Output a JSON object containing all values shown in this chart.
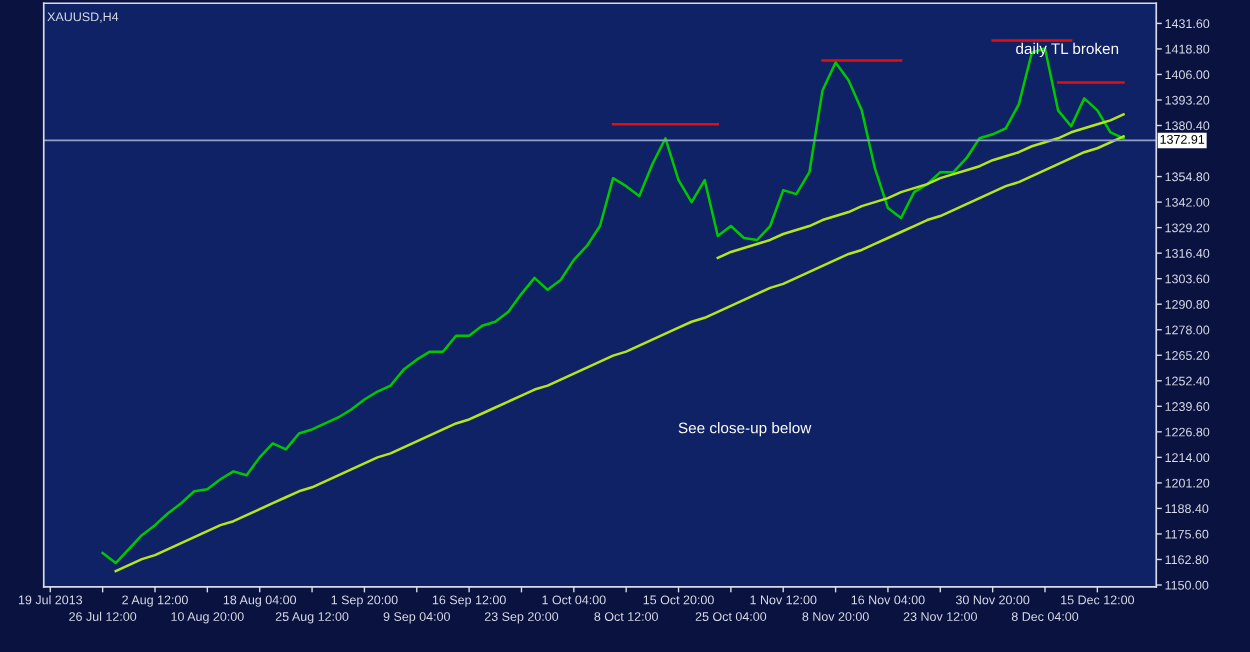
{
  "chart_data": {
    "type": "line",
    "title": "XAUUSD,H4",
    "categories": [
      "19 Jul 2013",
      null,
      null,
      null,
      "26 Jul 12:00",
      null,
      null,
      null,
      "2 Aug 12:00",
      null,
      null,
      null,
      "10 Aug 20:00",
      null,
      null,
      null,
      "18 Aug 04:00",
      null,
      null,
      null,
      "25 Aug 12:00",
      null,
      null,
      null,
      "1 Sep 20:00",
      null,
      null,
      null,
      "9 Sep 04:00",
      null,
      null,
      null,
      "16 Sep 12:00",
      null,
      null,
      null,
      "23 Sep 20:00",
      null,
      null,
      null,
      "1 Oct 04:00",
      null,
      null,
      null,
      "8 Oct 12:00",
      null,
      null,
      null,
      "15 Oct 20:00",
      null,
      null,
      null,
      "25 Oct 04:00",
      null,
      null,
      null,
      "1 Nov 12:00",
      null,
      null,
      null,
      "8 Nov 20:00",
      null,
      null,
      null,
      "16 Nov 04:00",
      null,
      null,
      null,
      "23 Nov 12:00",
      null,
      null,
      null,
      "30 Nov 20:00",
      null,
      null,
      null,
      "8 Dec 04:00",
      null,
      null,
      null,
      "15 Dec 12:00",
      null,
      null
    ],
    "series": [
      {
        "color": "#00c800",
        "values": [
          null,
          null,
          null,
          null,
          1166,
          1161,
          1168,
          1175,
          1180,
          1186,
          1191,
          1197,
          1198,
          1203,
          1207,
          1205,
          1214,
          1221,
          1218,
          1226,
          1228,
          1231,
          1234,
          1238,
          1243,
          1247,
          1250,
          1258,
          1263,
          1267,
          1267,
          1275,
          1275,
          1280,
          1282,
          1287,
          1296,
          1304,
          1298,
          1303,
          1313,
          1320,
          1330,
          1354,
          1350,
          1345,
          1361,
          1374,
          1353,
          1342,
          1353,
          1325,
          1330,
          1324,
          1323,
          1330,
          1348,
          1346,
          1357,
          1398,
          1412,
          1403,
          1388,
          1359,
          1339,
          1334,
          1347,
          1351,
          1357,
          1357,
          1364,
          1374,
          1376,
          1379,
          1391,
          1417,
          1419,
          1388,
          1380,
          1394,
          1388,
          1377,
          1374
        ]
      },
      {
        "color": "#b4e61e",
        "values": [
          null,
          null,
          null,
          null,
          null,
          1157,
          1160,
          1163,
          1165,
          1168,
          1171,
          1174,
          1177,
          1180,
          1182,
          1185,
          1188,
          1191,
          1194,
          1197,
          1199,
          1202,
          1205,
          1208,
          1211,
          1214,
          1216,
          1219,
          1222,
          1225,
          1228,
          1231,
          1233,
          1236,
          1239,
          1242,
          1245,
          1248,
          1250,
          1253,
          1256,
          1259,
          1262,
          1265,
          1267,
          1270,
          1273,
          1276,
          1279,
          1282,
          1284,
          1287,
          1290,
          1293,
          1296,
          1299,
          1301,
          1304,
          1307,
          1310,
          1313,
          1316,
          1318,
          1321,
          1324,
          1327,
          1330,
          1333,
          1335,
          1338,
          1341,
          1344,
          1347,
          1350,
          1352,
          1355,
          1358,
          1361,
          1364,
          1367,
          1369,
          1372,
          1375
        ]
      },
      {
        "color": "#b4e61e",
        "values": [
          null,
          null,
          null,
          null,
          null,
          null,
          null,
          null,
          null,
          null,
          null,
          null,
          null,
          null,
          null,
          null,
          null,
          null,
          null,
          null,
          null,
          null,
          null,
          null,
          null,
          null,
          null,
          null,
          null,
          null,
          null,
          null,
          null,
          null,
          null,
          null,
          null,
          null,
          null,
          null,
          null,
          null,
          null,
          null,
          null,
          null,
          null,
          null,
          null,
          null,
          null,
          1314,
          1317,
          1319,
          1321,
          1323,
          1326,
          1328,
          1330,
          1333,
          1335,
          1337,
          1340,
          1342,
          1344,
          1347,
          1349,
          1351,
          1354,
          1356,
          1358,
          1360,
          1363,
          1365,
          1367,
          1370,
          1372,
          1374,
          1377,
          1379,
          1381,
          1383,
          1386
        ]
      },
      {
        "color": "#e01010",
        "values": [
          null,
          null,
          null,
          null,
          null,
          null,
          null,
          null,
          null,
          null,
          null,
          null,
          null,
          null,
          null,
          null,
          null,
          null,
          null,
          null,
          null,
          null,
          null,
          null,
          null,
          null,
          null,
          null,
          null,
          null,
          null,
          null,
          null,
          null,
          null,
          null,
          null,
          null,
          null,
          null,
          null,
          null,
          null,
          1381,
          1381,
          1381,
          1381,
          1381,
          1381,
          1381,
          1381,
          1381,
          null,
          null,
          null,
          null,
          null,
          null,
          null,
          null,
          null,
          null,
          null,
          null,
          null,
          null,
          null,
          null,
          null,
          null,
          null,
          null,
          null,
          null,
          null,
          null,
          null,
          null,
          null,
          null,
          null,
          null,
          null
        ]
      },
      {
        "color": "#e01010",
        "values": [
          null,
          null,
          null,
          null,
          null,
          null,
          null,
          null,
          null,
          null,
          null,
          null,
          null,
          null,
          null,
          null,
          null,
          null,
          null,
          null,
          null,
          null,
          null,
          null,
          null,
          null,
          null,
          null,
          null,
          null,
          null,
          null,
          null,
          null,
          null,
          null,
          null,
          null,
          null,
          null,
          null,
          null,
          null,
          null,
          null,
          null,
          null,
          null,
          null,
          null,
          null,
          null,
          null,
          null,
          null,
          null,
          null,
          null,
          null,
          1413,
          1413,
          1413,
          1413,
          1413,
          1413,
          1413,
          null,
          null,
          null,
          null,
          null,
          null,
          null,
          null,
          null,
          null,
          null,
          null,
          null,
          null,
          null,
          null,
          null
        ]
      },
      {
        "color": "#e01010",
        "values": [
          null,
          null,
          null,
          null,
          null,
          null,
          null,
          null,
          null,
          null,
          null,
          null,
          null,
          null,
          null,
          null,
          null,
          null,
          null,
          null,
          null,
          null,
          null,
          null,
          null,
          null,
          null,
          null,
          null,
          null,
          null,
          null,
          null,
          null,
          null,
          null,
          null,
          null,
          null,
          null,
          null,
          null,
          null,
          null,
          null,
          null,
          null,
          null,
          null,
          null,
          null,
          null,
          null,
          null,
          null,
          null,
          null,
          null,
          null,
          null,
          null,
          null,
          null,
          null,
          null,
          null,
          null,
          null,
          null,
          null,
          null,
          null,
          1423,
          1423,
          1423,
          1423,
          1423,
          1423,
          1423,
          null,
          null,
          null,
          null
        ]
      },
      {
        "color": "#e01010",
        "values": [
          null,
          null,
          null,
          null,
          null,
          null,
          null,
          null,
          null,
          null,
          null,
          null,
          null,
          null,
          null,
          null,
          null,
          null,
          null,
          null,
          null,
          null,
          null,
          null,
          null,
          null,
          null,
          null,
          null,
          null,
          null,
          null,
          null,
          null,
          null,
          null,
          null,
          null,
          null,
          null,
          null,
          null,
          null,
          null,
          null,
          null,
          null,
          null,
          null,
          null,
          null,
          null,
          null,
          null,
          null,
          null,
          null,
          null,
          null,
          null,
          null,
          null,
          null,
          null,
          null,
          null,
          null,
          null,
          null,
          null,
          null,
          null,
          null,
          null,
          null,
          null,
          null,
          1402,
          1402,
          1402,
          1402,
          1402,
          1402
        ]
      }
    ],
    "ylim": [
      1149.1,
      1441.7
    ],
    "yticks": [
      {
        "value": 1431.6,
        "label": "1431.60"
      },
      {
        "value": 1418.8,
        "label": "1418.80"
      },
      {
        "value": 1406.0,
        "label": "1406.00"
      },
      {
        "value": 1393.2,
        "label": "1393.20"
      },
      {
        "value": 1380.4,
        "label": "1380.40"
      },
      {
        "value": 1354.8,
        "label": "1354.80"
      },
      {
        "value": 1342.0,
        "label": "1342.00"
      },
      {
        "value": 1329.2,
        "label": "1329.20"
      },
      {
        "value": 1316.4,
        "label": "1316.40"
      },
      {
        "value": 1303.6,
        "label": "1303.60"
      },
      {
        "value": 1290.8,
        "label": "1290.80"
      },
      {
        "value": 1278.0,
        "label": "1278.00"
      },
      {
        "value": 1265.2,
        "label": "1265.20"
      },
      {
        "value": 1252.4,
        "label": "1252.40"
      },
      {
        "value": 1239.6,
        "label": "1239.60"
      },
      {
        "value": 1226.8,
        "label": "1226.80"
      },
      {
        "value": 1214.0,
        "label": "1214.00"
      },
      {
        "value": 1201.2,
        "label": "1201.20"
      },
      {
        "value": 1188.4,
        "label": "1188.40"
      },
      {
        "value": 1175.6,
        "label": "1175.60"
      },
      {
        "value": 1162.8,
        "label": "1162.80"
      },
      {
        "value": 1150.0,
        "label": "1150.00"
      }
    ],
    "ref_lines": [
      {
        "axis": "y",
        "value": 1372.91,
        "label": "1372.91",
        "color": "#8fa0c8"
      }
    ],
    "annotations": [
      "daily TL broken",
      "See close-up below"
    ],
    "legend": false,
    "marker": "none",
    "line_style": "solid"
  }
}
